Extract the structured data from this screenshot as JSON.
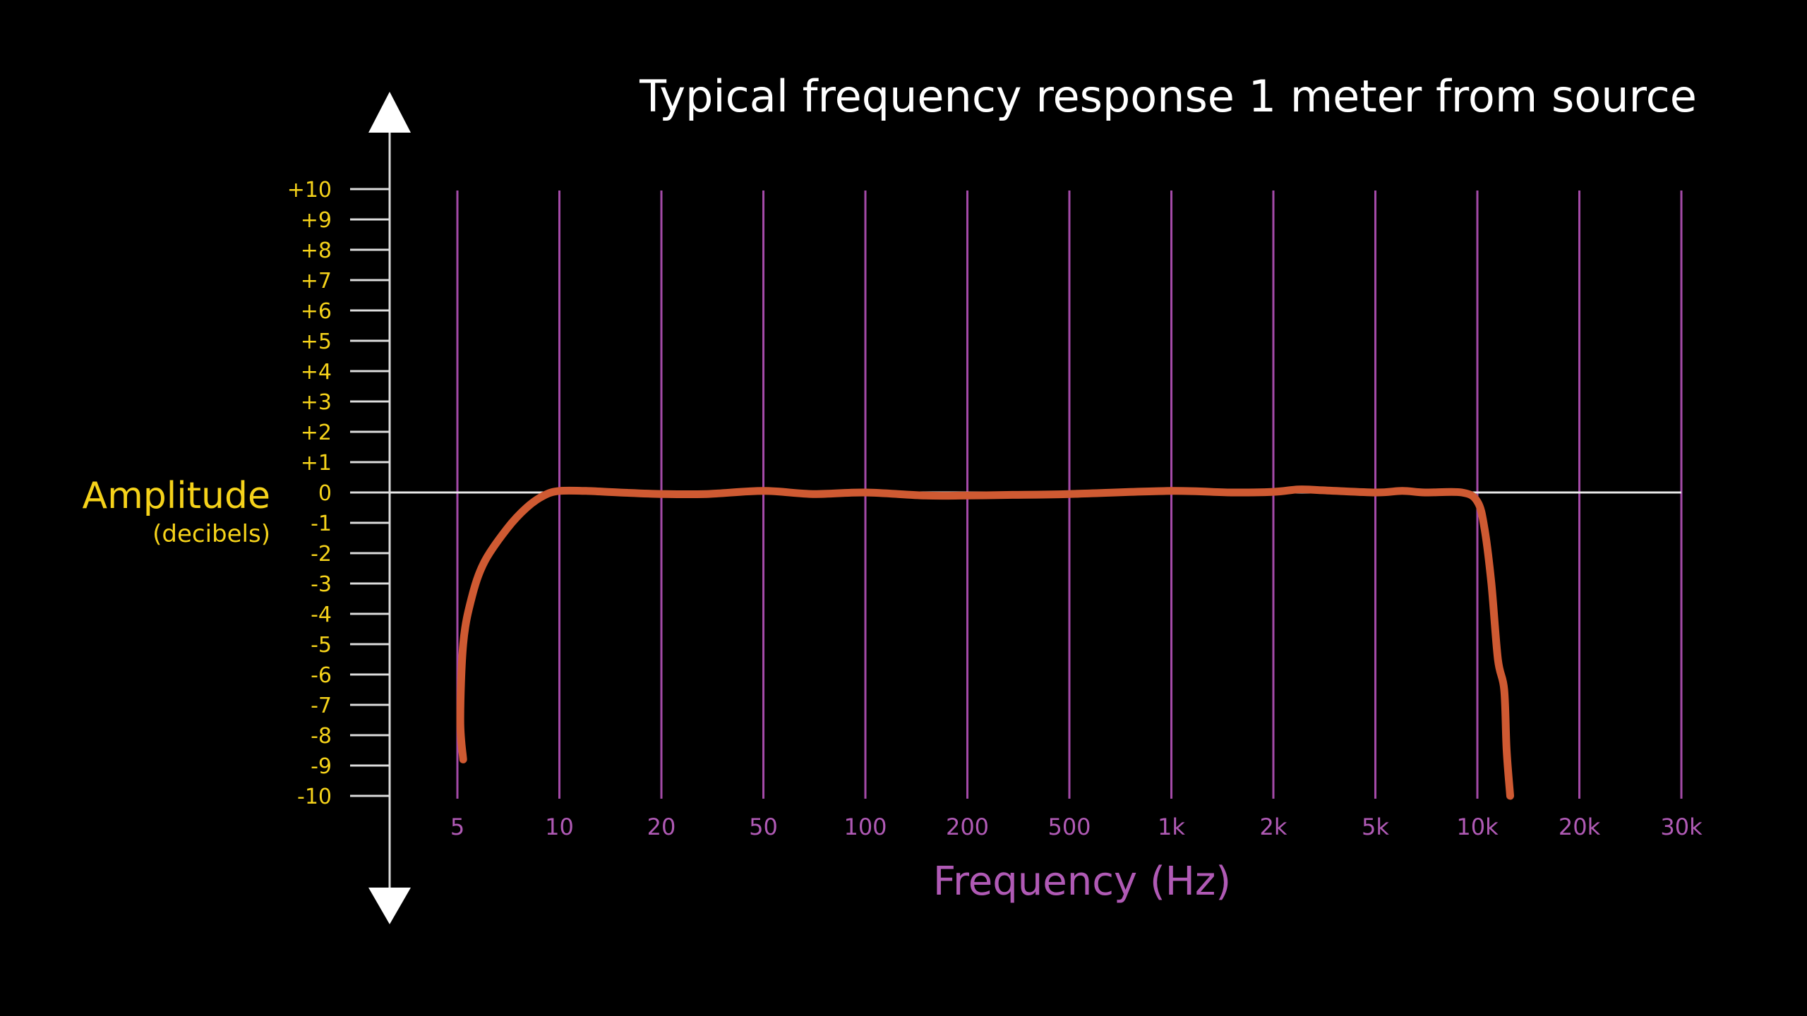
{
  "chart_data": {
    "type": "line",
    "title": "Typical frequency response 1 meter from source",
    "xlabel": "Frequency (Hz)",
    "ylabel": "Amplitude",
    "ylabel_sub": "(decibels)",
    "x_scale": "categorical-log",
    "x_ticks": [
      "5",
      "10",
      "20",
      "50",
      "100",
      "200",
      "500",
      "1k",
      "2k",
      "5k",
      "10k",
      "20k",
      "30k"
    ],
    "y_ticks": [
      "+10",
      "+9",
      "+8",
      "+7",
      "+6",
      "+5",
      "+4",
      "+3",
      "+2",
      "+1",
      "0",
      "-1",
      "-2",
      "-3",
      "-4",
      "-5",
      "-6",
      "-7",
      "-8",
      "-9",
      "-10"
    ],
    "ylim": [
      -10,
      10
    ],
    "grid": "vertical lines at each x tick",
    "reference_line": 0,
    "axis_arrows": "up and down",
    "series": [
      {
        "color": "#cf5a32",
        "points": [
          {
            "x": 5.2,
            "y": -8.8
          },
          {
            "x": 5.1,
            "y": -7.5
          },
          {
            "x": 5.2,
            "y": -5.0
          },
          {
            "x": 5.5,
            "y": -3.5
          },
          {
            "x": 6,
            "y": -2.3
          },
          {
            "x": 7,
            "y": -1.2
          },
          {
            "x": 8,
            "y": -0.5
          },
          {
            "x": 9,
            "y": -0.1
          },
          {
            "x": 10,
            "y": 0.05
          },
          {
            "x": 12,
            "y": 0.05
          },
          {
            "x": 15,
            "y": 0.0
          },
          {
            "x": 20,
            "y": -0.05
          },
          {
            "x": 30,
            "y": -0.05
          },
          {
            "x": 50,
            "y": 0.05
          },
          {
            "x": 70,
            "y": -0.05
          },
          {
            "x": 100,
            "y": 0.0
          },
          {
            "x": 150,
            "y": -0.1
          },
          {
            "x": 200,
            "y": -0.1
          },
          {
            "x": 300,
            "y": -0.08
          },
          {
            "x": 500,
            "y": -0.05
          },
          {
            "x": 1000,
            "y": 0.05
          },
          {
            "x": 1500,
            "y": 0.0
          },
          {
            "x": 2000,
            "y": 0.02
          },
          {
            "x": 2500,
            "y": 0.1
          },
          {
            "x": 3000,
            "y": 0.08
          },
          {
            "x": 5000,
            "y": 0.0
          },
          {
            "x": 6000,
            "y": 0.05
          },
          {
            "x": 7000,
            "y": 0.0
          },
          {
            "x": 9000,
            "y": 0.0
          },
          {
            "x": 10000,
            "y": -0.3
          },
          {
            "x": 10500,
            "y": -1.2
          },
          {
            "x": 11000,
            "y": -3.0
          },
          {
            "x": 11500,
            "y": -5.5
          },
          {
            "x": 12000,
            "y": -6.5
          },
          {
            "x": 12200,
            "y": -8.5
          },
          {
            "x": 12500,
            "y": -10.0
          }
        ]
      }
    ]
  },
  "colors": {
    "background": "#000000",
    "axis": "#dcdcdc",
    "arrow": "#ffffff",
    "gridline": "#a44aa8",
    "zero_line": "#e8e8e8",
    "curve": "#cf5a32",
    "y_text": "#f5d21a",
    "x_text": "#b05ab5",
    "title": "#ffffff"
  }
}
